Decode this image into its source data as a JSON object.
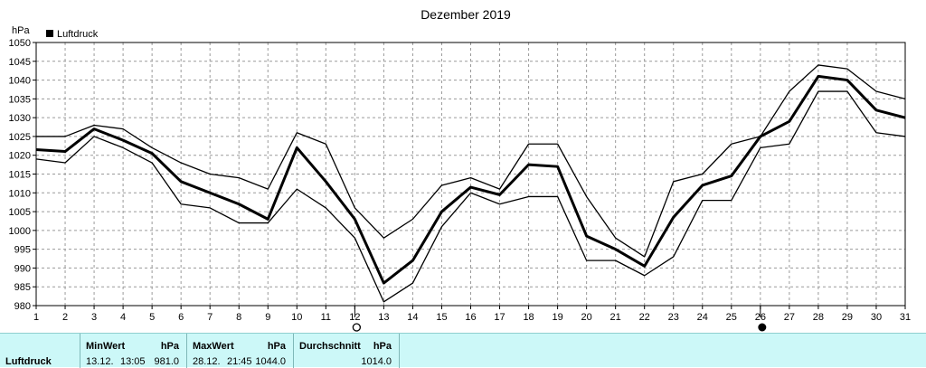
{
  "chart_data": {
    "type": "line",
    "title": "Dezember 2019",
    "ylabel": "hPa",
    "legend": {
      "label": "Luftdruck",
      "placement": "top-left"
    },
    "grid": true,
    "ylim": [
      980,
      1050
    ],
    "yticks": [
      980,
      985,
      990,
      995,
      1000,
      1005,
      1010,
      1015,
      1020,
      1025,
      1030,
      1035,
      1040,
      1045,
      1050
    ],
    "x": [
      1,
      2,
      3,
      4,
      5,
      6,
      7,
      8,
      9,
      10,
      11,
      12,
      13,
      14,
      15,
      16,
      17,
      18,
      19,
      20,
      21,
      22,
      23,
      24,
      25,
      26,
      27,
      28,
      29,
      30,
      31
    ],
    "xlim": [
      1,
      31
    ],
    "series": [
      {
        "role": "max",
        "values": [
          1025,
          1025,
          1028,
          1027,
          1022,
          1018,
          1015,
          1014,
          1011,
          1026,
          1023,
          1006,
          998,
          1003,
          1012,
          1014,
          1011,
          1023,
          1023,
          1009,
          998,
          993,
          1013,
          1015,
          1023,
          1025,
          1037,
          1044,
          1043,
          1037,
          1035
        ]
      },
      {
        "role": "avg",
        "values": [
          1021.5,
          1021,
          1027,
          1024,
          1020.5,
          1013,
          1010,
          1007,
          1003,
          1022,
          1013,
          1003,
          986,
          992,
          1005,
          1011.5,
          1009.5,
          1017.5,
          1017,
          998.5,
          995,
          990.5,
          1003.5,
          1012,
          1014.5,
          1025,
          1029,
          1041,
          1040,
          1032,
          1030
        ]
      },
      {
        "role": "min",
        "values": [
          1019,
          1018,
          1025,
          1022,
          1018,
          1007,
          1006,
          1002,
          1002,
          1011,
          1006,
          998,
          981,
          986,
          1001,
          1010,
          1007,
          1009,
          1009,
          992,
          992,
          988,
          993,
          1008,
          1008,
          1022,
          1023,
          1037,
          1037,
          1026,
          1025
        ]
      }
    ],
    "moon_phases": [
      {
        "day": 12,
        "phase": "full-moon-icon"
      },
      {
        "day": 26,
        "phase": "new-moon-icon"
      }
    ]
  },
  "stats": {
    "row_label": "Luftdruck",
    "min": {
      "header": "MinWert",
      "unit": "hPa",
      "date": "13.12.",
      "time": "13:05",
      "value": "981.0"
    },
    "max": {
      "header": "MaxWert",
      "unit": "hPa",
      "date": "28.12.",
      "time": "21:45",
      "value": "1044.0"
    },
    "avg": {
      "header": "Durchschnitt",
      "unit": "hPa",
      "value": "1014.0"
    }
  },
  "colors": {
    "panel": "#ccf8f8",
    "grid": "#9a9a9a",
    "line": "#000000"
  }
}
